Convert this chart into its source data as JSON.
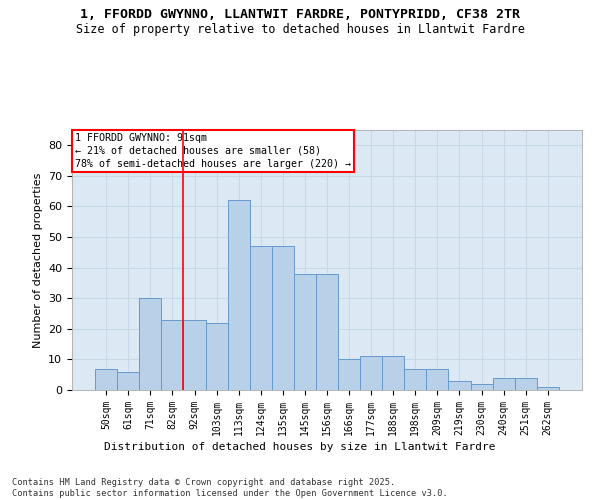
{
  "title": "1, FFORDD GWYNNO, LLANTWIT FARDRE, PONTYPRIDD, CF38 2TR",
  "subtitle": "Size of property relative to detached houses in Llantwit Fardre",
  "xlabel": "Distribution of detached houses by size in Llantwit Fardre",
  "ylabel": "Number of detached properties",
  "categories": [
    "50sqm",
    "61sqm",
    "71sqm",
    "82sqm",
    "92sqm",
    "103sqm",
    "113sqm",
    "124sqm",
    "135sqm",
    "145sqm",
    "156sqm",
    "166sqm",
    "177sqm",
    "188sqm",
    "198sqm",
    "209sqm",
    "219sqm",
    "230sqm",
    "240sqm",
    "251sqm",
    "262sqm"
  ],
  "values": [
    7,
    6,
    30,
    23,
    23,
    22,
    62,
    47,
    47,
    38,
    38,
    10,
    11,
    11,
    7,
    7,
    3,
    2,
    4,
    4,
    1
  ],
  "bar_color": "#b8d0e8",
  "bar_edge_color": "#6699cc",
  "grid_color": "#c8d8e8",
  "background_color": "#dce9f5",
  "annotation_text": "1 FFORDD GWYNNO: 91sqm\n← 21% of detached houses are smaller (58)\n78% of semi-detached houses are larger (220) →",
  "vline_x_index": 3.5,
  "ylim": [
    0,
    85
  ],
  "yticks": [
    0,
    10,
    20,
    30,
    40,
    50,
    60,
    70,
    80
  ],
  "footer": "Contains HM Land Registry data © Crown copyright and database right 2025.\nContains public sector information licensed under the Open Government Licence v3.0."
}
